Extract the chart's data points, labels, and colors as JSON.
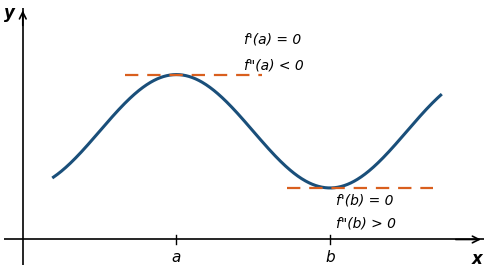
{
  "bg_color": "#ffffff",
  "curve_color": "#1a4f7a",
  "dashed_color": "#d95f1e",
  "text_color": "#000000",
  "axis_color": "#000000",
  "a_x": 2.5,
  "b_x": 5.0,
  "x_min": -0.3,
  "x_max": 7.5,
  "y_min": -0.5,
  "y_max": 4.5,
  "y_at_a": 3.2,
  "y_at_b": 1.0,
  "label_a": "a",
  "label_b": "b",
  "label_x": "x",
  "label_y": "y",
  "annot_a1": "f'(a) = 0",
  "annot_a2": "f\"(a) < 0",
  "annot_b1": "f'(b) = 0",
  "annot_b2": "f\"(b) > 0",
  "curve_lw": 2.2,
  "dashed_lw": 1.6,
  "fontsize_axis_label": 12,
  "fontsize_tick_label": 11,
  "fontsize_annot": 10
}
